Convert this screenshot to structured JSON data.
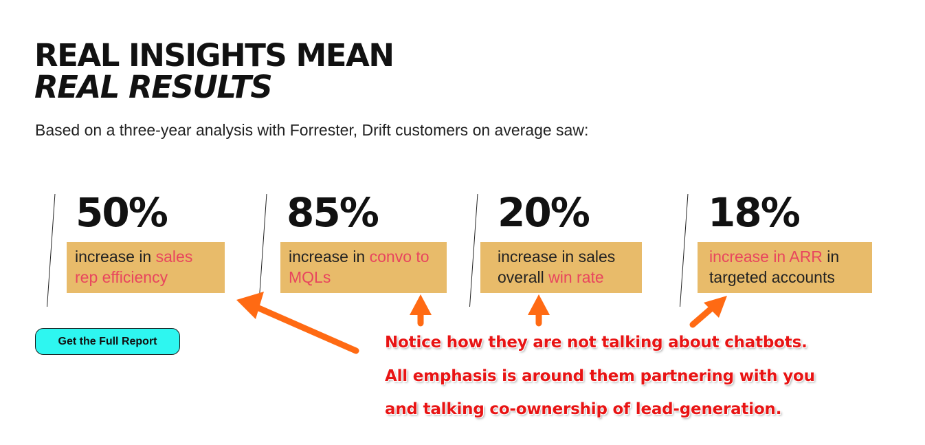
{
  "headline": {
    "line1": "REAL INSIGHTS MEAN",
    "line2": "REAL RESULTS"
  },
  "subhead": "Based on a three-year analysis with Forrester, Drift customers on average saw:",
  "stats": [
    {
      "value": "50%",
      "before": "increase in ",
      "highlight": "sales rep efficiency",
      "after": ""
    },
    {
      "value": "85%",
      "before": "increase in ",
      "highlight": "convo to MQLs",
      "after": ""
    },
    {
      "value": "20%",
      "before": "increase in sales overall ",
      "highlight": "win rate",
      "after": ""
    },
    {
      "value": "18%",
      "before": "",
      "highlight": "increase in ARR",
      "after": " in targeted accounts"
    }
  ],
  "cta_label": "Get the Full Report",
  "annotation": {
    "line1": "Notice how they are not talking about chatbots.",
    "line2": "All emphasis is around them partnering with you",
    "line3": "and talking co-ownership of lead-generation."
  },
  "colors": {
    "box": "#e8bb6a",
    "highlight": "#e8455e",
    "cta": "#2ef6f0",
    "arrow": "#ff6a13",
    "annotation": "#e81414"
  }
}
